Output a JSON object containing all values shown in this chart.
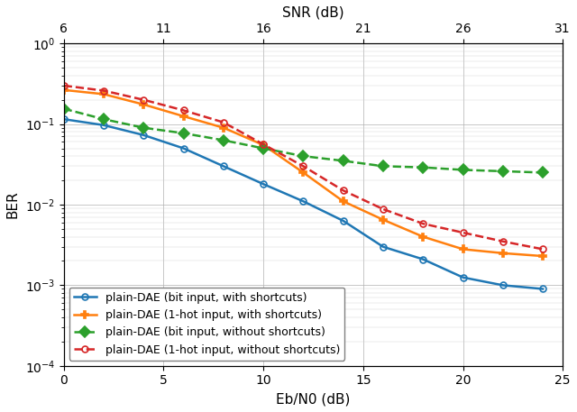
{
  "title_top": "SNR (dB)",
  "xlabel": "Eb/N0 (dB)",
  "ylabel": "BER",
  "xlim": [
    0,
    25
  ],
  "ylim": [
    0.0001,
    1.0
  ],
  "xticks_bottom": [
    0,
    5,
    10,
    15,
    20,
    25
  ],
  "xticks_top": [
    6,
    11,
    16,
    21,
    26,
    31
  ],
  "series": [
    {
      "label": "plain-DAE (bit input, with shortcuts)",
      "color": "#1f77b4",
      "linestyle": "-",
      "marker": "o",
      "markersize": 5,
      "markerfacecolor": "none",
      "linewidth": 1.8,
      "x": [
        0,
        2,
        4,
        6,
        8,
        10,
        12,
        14,
        16,
        18,
        20,
        22,
        24
      ],
      "y": [
        0.115,
        0.097,
        0.073,
        0.05,
        0.03,
        0.018,
        0.011,
        0.0063,
        0.003,
        0.0021,
        0.00125,
        0.001,
        0.0009
      ]
    },
    {
      "label": "plain-DAE (1-hot input, with shortcuts)",
      "color": "#ff7f0e",
      "linestyle": "-",
      "marker": "P",
      "markersize": 6,
      "markerfacecolor": "#ff7f0e",
      "linewidth": 1.8,
      "x": [
        0,
        2,
        4,
        6,
        8,
        10,
        12,
        14,
        16,
        18,
        20,
        22,
        24
      ],
      "y": [
        0.265,
        0.235,
        0.175,
        0.125,
        0.09,
        0.055,
        0.025,
        0.011,
        0.0065,
        0.004,
        0.0028,
        0.0025,
        0.0023
      ]
    },
    {
      "label": "plain-DAE (bit input, without shortcuts)",
      "color": "#2ca02c",
      "linestyle": "--",
      "marker": "D",
      "markersize": 6,
      "markerfacecolor": "#2ca02c",
      "linewidth": 1.8,
      "x": [
        0,
        2,
        4,
        6,
        8,
        10,
        12,
        14,
        16,
        18,
        20,
        22,
        24
      ],
      "y": [
        0.155,
        0.115,
        0.09,
        0.077,
        0.063,
        0.05,
        0.04,
        0.035,
        0.03,
        0.029,
        0.027,
        0.026,
        0.025
      ]
    },
    {
      "label": "plain-DAE (1-hot input, without shortcuts)",
      "color": "#d62728",
      "linestyle": "--",
      "marker": "o",
      "markersize": 5,
      "markerfacecolor": "none",
      "linewidth": 1.8,
      "x": [
        0,
        2,
        4,
        6,
        8,
        10,
        12,
        14,
        16,
        18,
        20,
        22,
        24
      ],
      "y": [
        0.3,
        0.26,
        0.2,
        0.148,
        0.105,
        0.056,
        0.03,
        0.015,
        0.0088,
        0.0058,
        0.0045,
        0.0035,
        0.0028
      ]
    }
  ]
}
